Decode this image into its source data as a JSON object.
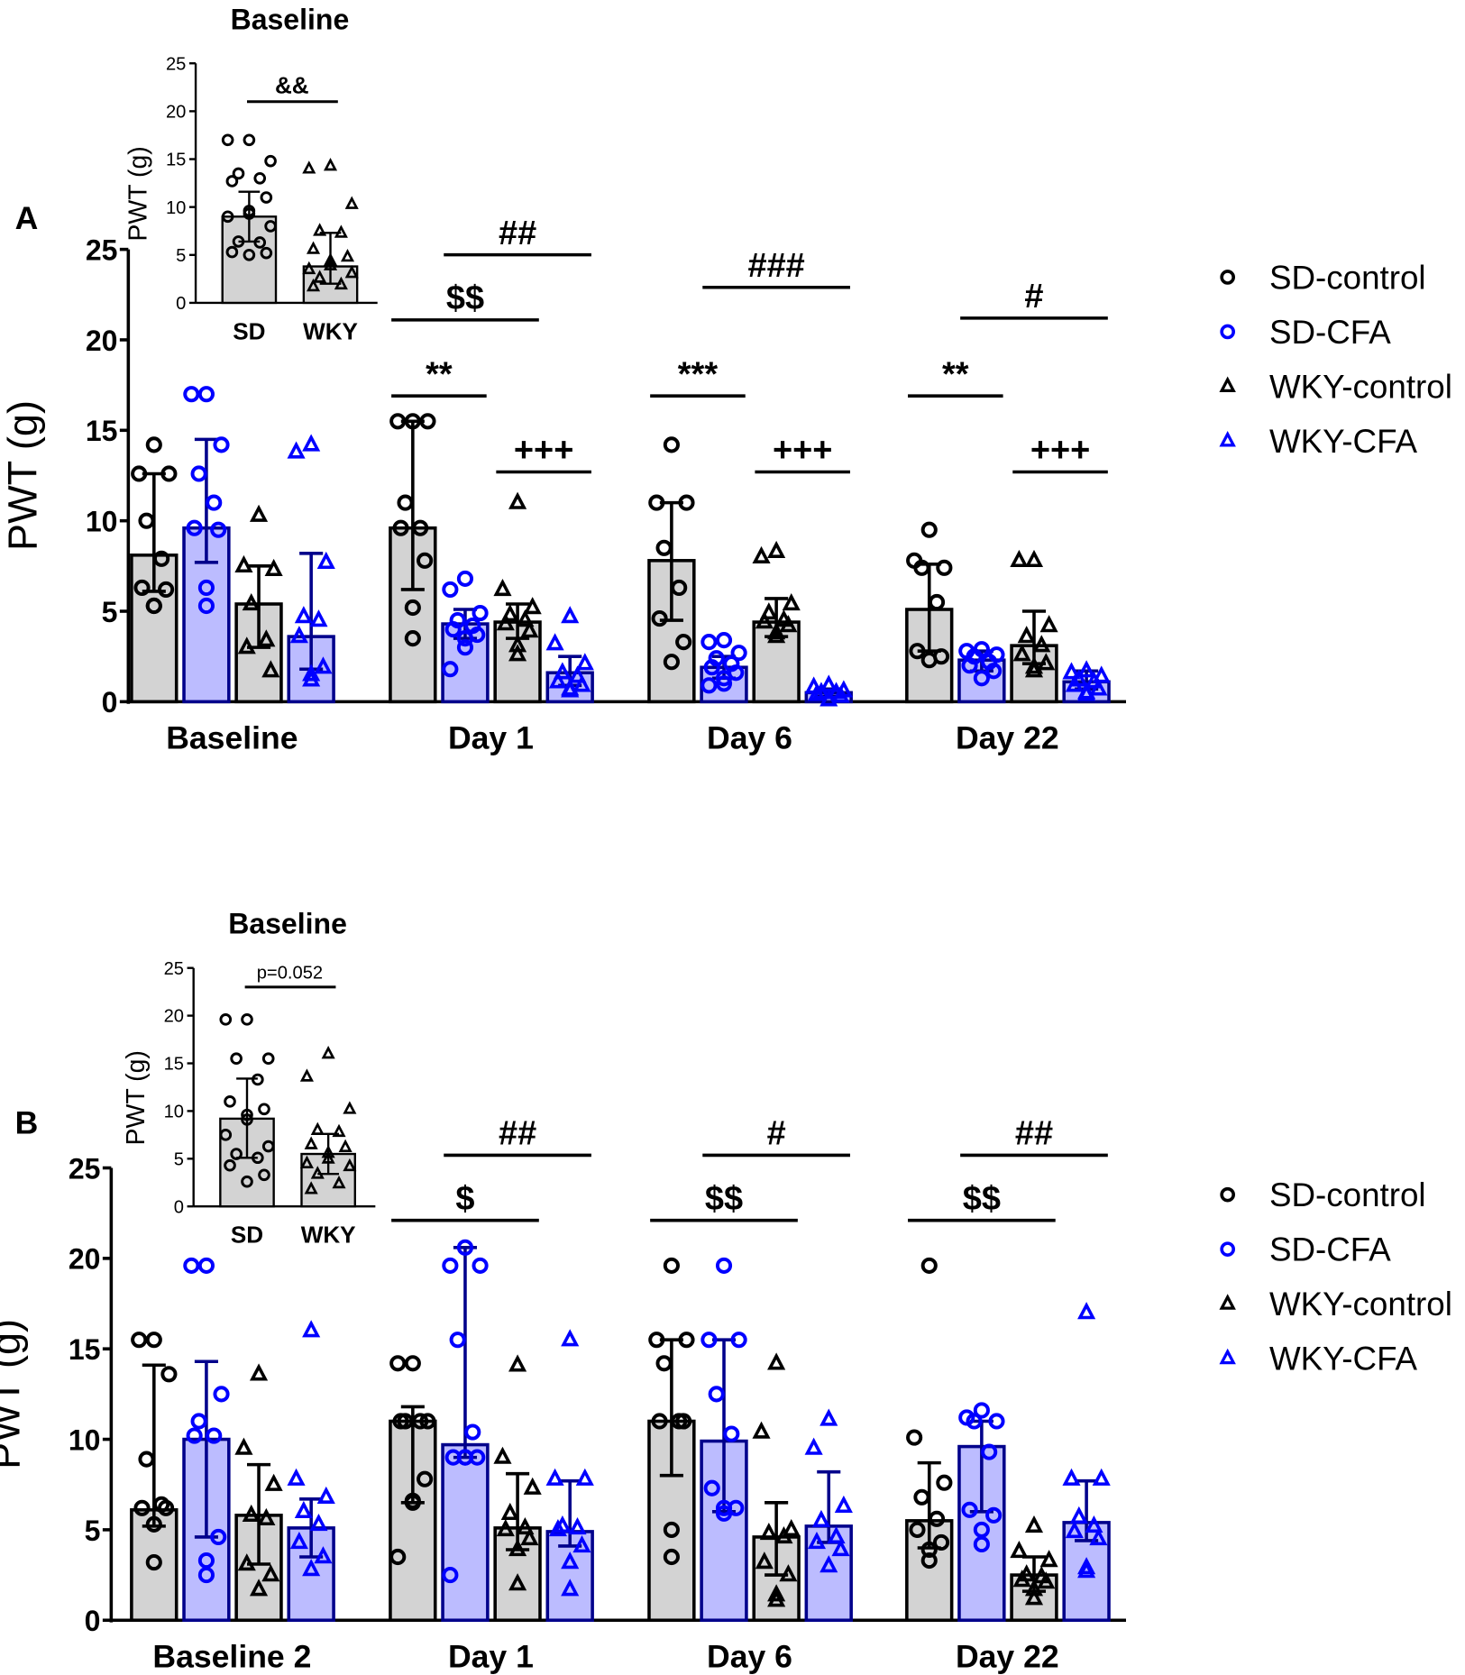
{
  "colors": {
    "control_fill": "#d3d3d3",
    "cfa_fill": "#bcbcff",
    "cfa_stroke": "#00008b",
    "cfa_point": "#0000ff",
    "black": "#000000"
  },
  "legend": [
    {
      "label": "SD-control",
      "marker": "circle",
      "color": "#000000"
    },
    {
      "label": "SD-CFA",
      "marker": "circle",
      "color": "#0000ff"
    },
    {
      "label": "WKY-control",
      "marker": "triangle",
      "color": "#000000"
    },
    {
      "label": "WKY-CFA",
      "marker": "triangle",
      "color": "#0000ff"
    }
  ],
  "chart_data": [
    {
      "panel": "A",
      "type": "bar",
      "ylabel": "PWT (g)",
      "ylim": [
        0,
        25
      ],
      "yticks": [
        "0",
        "5",
        "10",
        "15",
        "20",
        "25"
      ],
      "categories": [
        "Baseline",
        "Day 1",
        "Day 6",
        "Day 22"
      ],
      "series_order": [
        "SD-control",
        "SD-CFA",
        "WKY-control",
        "WKY-CFA"
      ],
      "groups": [
        {
          "bars": [
            {
              "mean": 8.1,
              "err": [
                6.1,
                12.6
              ],
              "points": [
                14.2,
                12.6,
                12.6,
                10,
                7.9,
                6.3,
                6.2,
                5.3,
                5.3
              ]
            },
            {
              "mean": 9.6,
              "err": [
                7.7,
                14.5
              ],
              "points": [
                17,
                17,
                14.2,
                12.6,
                11,
                9.6,
                9.5,
                6.3,
                5.3
              ]
            },
            {
              "mean": 5.4,
              "err": [
                3.0,
                7.5
              ],
              "points": [
                10.3,
                7.5,
                7.3,
                5.4,
                3.4,
                3.0,
                1.7
              ]
            },
            {
              "mean": 3.6,
              "err": [
                1.8,
                8.2
              ],
              "points": [
                14.2,
                13.8,
                7.7,
                4.7,
                4.5,
                3.6,
                1.9,
                1.5,
                1.2
              ]
            }
          ]
        },
        {
          "bars": [
            {
              "mean": 9.6,
              "err": [
                6.2,
                15.5
              ],
              "points": [
                15.5,
                15.5,
                15.5,
                11,
                9.6,
                9.6,
                7.8,
                5.2,
                3.5
              ]
            },
            {
              "mean": 4.3,
              "err": [
                3.5,
                5.1
              ],
              "points": [
                6.8,
                6.2,
                4.9,
                4.5,
                4.2,
                4.0,
                3.7,
                3.5,
                3.0,
                1.8
              ]
            },
            {
              "mean": 4.4,
              "err": [
                3.5,
                5.4
              ],
              "points": [
                11,
                6.2,
                5.2,
                4.8,
                4.5,
                4.3,
                3.9,
                3.1,
                2.6
              ]
            },
            {
              "mean": 1.6,
              "err": [
                0.9,
                2.5
              ],
              "points": [
                4.7,
                3.2,
                2.1,
                1.6,
                1.4,
                1.1,
                0.9,
                0.7,
                0.6
              ]
            }
          ]
        },
        {
          "bars": [
            {
              "mean": 7.8,
              "err": [
                4.5,
                11
              ],
              "points": [
                14.2,
                11,
                11,
                8.5,
                6.3,
                4.6,
                3.3,
                2.2
              ]
            },
            {
              "mean": 1.9,
              "err": [
                1.3,
                2.5
              ],
              "points": [
                3.4,
                3.3,
                2.7,
                2.4,
                2.1,
                1.9,
                1.6,
                1.3,
                1.0,
                0.9
              ]
            },
            {
              "mean": 4.4,
              "err": [
                3.6,
                5.7
              ],
              "points": [
                8.3,
                8.0,
                5.4,
                4.9,
                4.5,
                4.4,
                4.2,
                3.8,
                3.6
              ]
            },
            {
              "mean": 0.5,
              "err": [
                0.3,
                0.7
              ],
              "points": [
                0.9,
                0.8,
                0.6,
                0.5,
                0.5,
                0.4,
                0.3,
                0.1
              ]
            }
          ]
        },
        {
          "bars": [
            {
              "mean": 5.1,
              "err": [
                2.8,
                7.6
              ],
              "points": [
                9.5,
                7.8,
                7.4,
                7.4,
                5.5,
                2.8,
                2.5,
                2.3
              ]
            },
            {
              "mean": 2.3,
              "err": [
                1.7,
                2.8
              ],
              "points": [
                2.9,
                2.8,
                2.6,
                2.5,
                2.2,
                2.0,
                1.7,
                1.3
              ]
            },
            {
              "mean": 3.1,
              "err": [
                2.1,
                5.0
              ],
              "points": [
                7.8,
                7.8,
                4.2,
                3.6,
                3.1,
                2.6,
                2.1,
                1.9,
                1.7
              ]
            },
            {
              "mean": 1.1,
              "err": [
                0.7,
                1.7
              ],
              "points": [
                1.7,
                1.6,
                1.4,
                1.2,
                1.1,
                0.9,
                0.7,
                0.5,
                0.4
              ]
            }
          ]
        }
      ],
      "annotations": [
        {
          "group": 1,
          "from": 0,
          "to": 1,
          "y": 16.9,
          "label": "**"
        },
        {
          "group": 1,
          "from": 2,
          "to": 3,
          "y": 12.7,
          "label": "+++"
        },
        {
          "group": 1,
          "from": 0,
          "to": 2,
          "y": 21.1,
          "label": "$$"
        },
        {
          "group": 1,
          "from": 1,
          "to": 3,
          "y": 24.7,
          "label": "##"
        },
        {
          "group": 2,
          "from": 0,
          "to": 1,
          "y": 16.9,
          "label": "***"
        },
        {
          "group": 2,
          "from": 2,
          "to": 3,
          "y": 12.7,
          "label": "+++"
        },
        {
          "group": 2,
          "from": 1,
          "to": 3,
          "y": 22.9,
          "label": "###"
        },
        {
          "group": 3,
          "from": 0,
          "to": 1,
          "y": 16.9,
          "label": "**"
        },
        {
          "group": 3,
          "from": 2,
          "to": 3,
          "y": 12.7,
          "label": "+++"
        },
        {
          "group": 3,
          "from": 1,
          "to": 3,
          "y": 21.2,
          "label": "#"
        }
      ],
      "inset": {
        "title": "Baseline",
        "ylabel": "PWT (g)",
        "ylim": [
          0,
          25
        ],
        "yticks": [
          "0",
          "5",
          "10",
          "15",
          "20",
          "25"
        ],
        "categories": [
          "SD",
          "WKY"
        ],
        "bars": [
          {
            "mean": 9.0,
            "err": [
              6.4,
              11.6
            ],
            "marker": "circle",
            "points": [
              17,
              17,
              14.8,
              13.5,
              13,
              12.7,
              11,
              9.6,
              9.3,
              9,
              8,
              6.4,
              6.3,
              5.3,
              5.2,
              5.0
            ]
          },
          {
            "mean": 3.8,
            "err": [
              2.0,
              7.3
            ],
            "points": [
              14.3,
              14.0,
              10.3,
              7.5,
              7.3,
              5.6,
              4.8,
              4.4,
              3.9,
              3.5,
              3.1,
              2.6,
              1.9,
              1.7
            ],
            "marker": "triangle"
          }
        ],
        "annotation": {
          "label": "&&",
          "y": 21
        }
      }
    },
    {
      "panel": "B",
      "type": "bar",
      "ylabel": "PWT (g)",
      "ylim": [
        0,
        25
      ],
      "yticks": [
        "0",
        "5",
        "10",
        "15",
        "20",
        "25"
      ],
      "categories": [
        "Baseline 2",
        "Day 1",
        "Day 6",
        "Day 22"
      ],
      "series_order": [
        "SD-control",
        "SD-CFA",
        "WKY-control",
        "WKY-CFA"
      ],
      "groups": [
        {
          "bars": [
            {
              "mean": 6.1,
              "err": [
                5.2,
                14.1
              ],
              "points": [
                15.5,
                15.5,
                13.6,
                8.9,
                6.4,
                6.2,
                6.2,
                5.3,
                3.2
              ]
            },
            {
              "mean": 10.0,
              "err": [
                4.6,
                14.3
              ],
              "points": [
                19.6,
                19.6,
                12.5,
                11,
                10.2,
                10.2,
                4.6,
                3.3,
                2.5
              ]
            },
            {
              "mean": 5.8,
              "err": [
                3.1,
                8.6
              ],
              "points": [
                13.6,
                9.5,
                7.5,
                5.8,
                5.6,
                3.1,
                2.5,
                1.7
              ]
            },
            {
              "mean": 5.1,
              "err": [
                3.5,
                6.7
              ],
              "points": [
                16.0,
                7.8,
                6.8,
                6.0,
                5.3,
                4.3,
                3.5,
                2.8
              ]
            }
          ]
        },
        {
          "bars": [
            {
              "mean": 11.0,
              "err": [
                6.5,
                11.8
              ],
              "points": [
                14.2,
                14.2,
                11,
                11,
                11,
                11,
                7.8,
                6.6,
                6.5,
                3.5
              ]
            },
            {
              "mean": 9.7,
              "err": [
                9.0,
                20.6
              ],
              "points": [
                20.6,
                19.6,
                19.6,
                15.5,
                10.4,
                9,
                9,
                9,
                9,
                2.5
              ]
            },
            {
              "mean": 5.1,
              "err": [
                3.9,
                8.1
              ],
              "points": [
                14.1,
                9,
                7.3,
                5.9,
                5.1,
                5,
                4.5,
                3.9,
                2
              ]
            },
            {
              "mean": 4.9,
              "err": [
                4.1,
                7.7
              ],
              "points": [
                15.5,
                7.8,
                7.8,
                5.2,
                5.1,
                5.0,
                4.1,
                3.2,
                1.7
              ]
            }
          ]
        },
        {
          "bars": [
            {
              "mean": 11.0,
              "err": [
                8.0,
                15.5
              ],
              "points": [
                19.6,
                15.5,
                15.5,
                14.2,
                11,
                11,
                11,
                5.0,
                3.5
              ]
            },
            {
              "mean": 9.9,
              "err": [
                6.0,
                15.5
              ],
              "points": [
                19.6,
                15.5,
                15.5,
                12.5,
                10.3,
                7.3,
                6.2,
                6.2,
                5.9
              ]
            },
            {
              "mean": 4.6,
              "err": [
                2.5,
                6.5
              ],
              "points": [
                14.2,
                10.4,
                5.0,
                4.8,
                4.6,
                3.2,
                2.5,
                1.4,
                1.1
              ]
            },
            {
              "mean": 5.2,
              "err": [
                4.3,
                8.2
              ],
              "points": [
                11.1,
                9.5,
                6.3,
                5.5,
                4.6,
                4.3,
                3.9,
                3.0
              ]
            }
          ]
        },
        {
          "bars": [
            {
              "mean": 5.5,
              "err": [
                4.0,
                8.7
              ],
              "points": [
                19.6,
                10.1,
                7.6,
                6.8,
                5.6,
                5.0,
                4.3,
                3.9,
                3.3
              ]
            },
            {
              "mean": 9.6,
              "err": [
                6.0,
                11.0
              ],
              "points": [
                11.6,
                11.2,
                11,
                11,
                9.3,
                6.1,
                5.8,
                5.0,
                4.2
              ]
            },
            {
              "mean": 2.5,
              "err": [
                1.6,
                3.5
              ],
              "points": [
                5.2,
                3.8,
                3.3,
                2.5,
                2.4,
                2.2,
                2.1,
                1.7,
                1.2
              ]
            },
            {
              "mean": 5.4,
              "err": [
                4.4,
                7.7
              ],
              "points": [
                17,
                7.8,
                7.8,
                5.7,
                5.2,
                4.9,
                4.5,
                2.9,
                2.7
              ]
            }
          ]
        }
      ],
      "annotations": [
        {
          "group": 1,
          "from": 0,
          "to": 2,
          "y": 22.1,
          "label": "$"
        },
        {
          "group": 1,
          "from": 1,
          "to": 3,
          "y": 25.7,
          "label": "##"
        },
        {
          "group": 2,
          "from": 0,
          "to": 2,
          "y": 22.1,
          "label": "$$"
        },
        {
          "group": 2,
          "from": 1,
          "to": 3,
          "y": 25.7,
          "label": "#"
        },
        {
          "group": 3,
          "from": 0,
          "to": 2,
          "y": 22.1,
          "label": "$$"
        },
        {
          "group": 3,
          "from": 1,
          "to": 3,
          "y": 25.7,
          "label": "##"
        }
      ],
      "inset": {
        "title": "Baseline",
        "ylabel": "PWT (g)",
        "ylim": [
          0,
          25
        ],
        "yticks": [
          "0",
          "5",
          "10",
          "15",
          "20",
          "25"
        ],
        "categories": [
          "SD",
          "WKY"
        ],
        "bars": [
          {
            "mean": 9.2,
            "err": [
              5.1,
              13.4
            ],
            "marker": "circle",
            "points": [
              19.6,
              19.6,
              15.5,
              15.5,
              13.3,
              11,
              10.2,
              9.6,
              9.1,
              7.5,
              6.3,
              5.5,
              5.1,
              4.3,
              3.3,
              2.6
            ]
          },
          {
            "mean": 5.5,
            "err": [
              3.4,
              7.6
            ],
            "marker": "triangle",
            "points": [
              16,
              13.6,
              10.2,
              8,
              7.8,
              6.5,
              6.2,
              5.6,
              5,
              4.5,
              4.2,
              3.4,
              2.4,
              1.8
            ]
          }
        ],
        "annotation": {
          "label": "p=0.052",
          "y": 23
        }
      }
    }
  ]
}
